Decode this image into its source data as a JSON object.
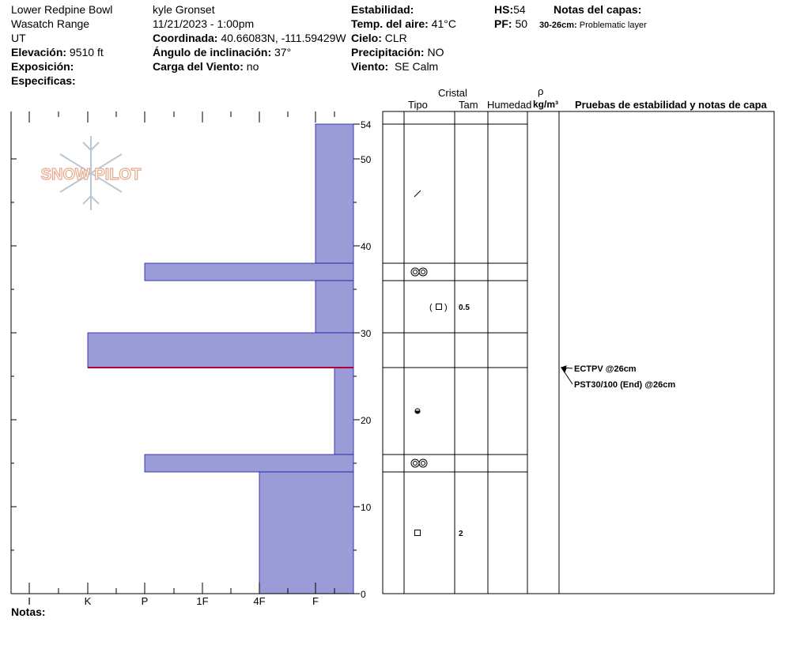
{
  "header": {
    "location": "Lower Redpine Bowl",
    "range": "Wasatch Range",
    "state": "UT",
    "elevation_label": "Elevación:",
    "elevation_value": "9510 ft",
    "aspect_label": "Exposición:",
    "aspect_value": "",
    "specifics_label": "Especificas:",
    "observer": "kyle Gronset",
    "datetime": "11/21/2023 - 1:00pm",
    "coord_label": "Coordinada:",
    "coord_value": "40.66083N, -111.59429W",
    "slope_label": "Ángulo de inclinación:",
    "slope_value": "37°",
    "wind_load_label": "Carga del Viento:",
    "wind_load_value": "no",
    "stability_label": "Estabilidad:",
    "stability_value": "",
    "air_temp_label": "Temp. del aire:",
    "air_temp_value": "41°C",
    "sky_label": "Cielo:",
    "sky_value": "CLR",
    "precip_label": "Precipitación:",
    "precip_value": "NO",
    "wind_label": "Viento:",
    "wind_value": "SE Calm",
    "hs_label": "HS:",
    "hs_value": "54",
    "pf_label": "PF:",
    "pf_value": "50",
    "layer_notes_label": "Notas del capas:",
    "layer_note_depth": "30-26cm:",
    "layer_note_text": "Problematic layer"
  },
  "columns": {
    "cristal": "Cristal",
    "tipo": "Tipo",
    "tam": "Tam",
    "humedad": "Humedad",
    "rho": "ρ",
    "density_unit": "kg/m³",
    "stability_notes": "Pruebas de estabilidad y notas de capa"
  },
  "logo_text": "SNOW PILOT",
  "notes_label": "Notas:",
  "colors": {
    "hardness_fill": "#9b9bd7",
    "hardness_edge": "#1a1aa6",
    "weak_layer": "#b0003a"
  },
  "chart_data": {
    "type": "bar",
    "orientation": "horizontal-step",
    "xlabel": "",
    "ylabel": "",
    "hardness_scale": [
      "I",
      "K",
      "P",
      "1F",
      "4F",
      "F"
    ],
    "ylim": [
      0,
      54
    ],
    "y_ticks": [
      0,
      10,
      20,
      30,
      40,
      50,
      54
    ],
    "layers": [
      {
        "top": 54,
        "bottom": 38,
        "hardness": "F"
      },
      {
        "top": 38,
        "bottom": 36,
        "hardness": "P"
      },
      {
        "top": 36,
        "bottom": 30,
        "hardness": "F"
      },
      {
        "top": 30,
        "bottom": 26,
        "hardness": "K"
      },
      {
        "top": 26,
        "bottom": 16,
        "hardness": "F-"
      },
      {
        "top": 16,
        "bottom": 14,
        "hardness": "P"
      },
      {
        "top": 14,
        "bottom": 0,
        "hardness": "4F"
      }
    ],
    "weak_layer_depth": 26,
    "crystals": [
      {
        "depth": 46,
        "type": "precipitation-particle-fragment",
        "size": ""
      },
      {
        "depth": 37,
        "type": "melt-freeze-crust",
        "size": ""
      },
      {
        "depth": 33,
        "type": "faceted-crystal",
        "size": "0.5"
      },
      {
        "depth": 21,
        "type": "rounding-faceted",
        "size": ""
      },
      {
        "depth": 15,
        "type": "melt-freeze-crust",
        "size": ""
      },
      {
        "depth": 7,
        "type": "faceted-crystal",
        "size": "2"
      }
    ],
    "stability_tests": [
      {
        "depth": 26,
        "text": "ECTPV @26cm"
      },
      {
        "depth": 26,
        "text": "PST30/100 (End) @26cm"
      }
    ]
  }
}
